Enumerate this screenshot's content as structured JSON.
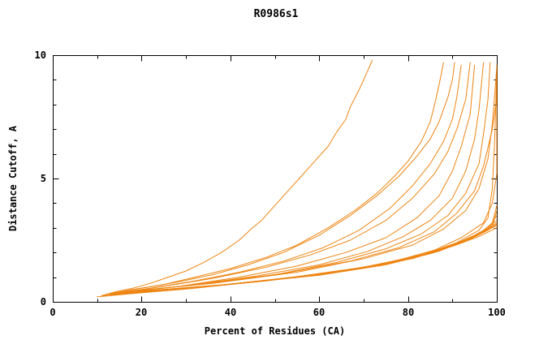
{
  "chart_data": {
    "type": "line",
    "title": "R0986s1",
    "xlabel": "Percent of Residues (CA)",
    "ylabel": "Distance Cutoff, A",
    "xlim": [
      0,
      100
    ],
    "ylim": [
      0,
      10
    ],
    "x_ticks": [
      0,
      20,
      40,
      60,
      80,
      100
    ],
    "y_ticks": [
      0,
      5,
      10
    ],
    "x_minor_ticks": [
      10,
      30,
      50,
      70,
      90
    ],
    "y_minor_ticks": [
      1,
      2,
      3,
      4,
      6,
      7,
      8,
      9
    ],
    "grid": false,
    "legend": "none",
    "line_color": "#ee8512",
    "frame_color": "#000000",
    "series": [
      [
        [
          11,
          0.25
        ],
        [
          14,
          0.4
        ],
        [
          18,
          0.55
        ],
        [
          22,
          0.75
        ],
        [
          26,
          1.0
        ],
        [
          30,
          1.25
        ],
        [
          34,
          1.6
        ],
        [
          38,
          2.0
        ],
        [
          42,
          2.5
        ],
        [
          45,
          3.0
        ],
        [
          47,
          3.3
        ],
        [
          50,
          3.9
        ],
        [
          53,
          4.5
        ],
        [
          56,
          5.1
        ],
        [
          59,
          5.7
        ],
        [
          62,
          6.3
        ],
        [
          64,
          6.9
        ],
        [
          66,
          7.4
        ],
        [
          67,
          7.9
        ],
        [
          69,
          8.6
        ],
        [
          70,
          9.0
        ],
        [
          71,
          9.4
        ],
        [
          72,
          9.8
        ]
      ],
      [
        [
          12,
          0.3
        ],
        [
          18,
          0.5
        ],
        [
          25,
          0.7
        ],
        [
          32,
          1.0
        ],
        [
          40,
          1.35
        ],
        [
          48,
          1.8
        ],
        [
          55,
          2.3
        ],
        [
          62,
          3.0
        ],
        [
          68,
          3.7
        ],
        [
          73,
          4.4
        ],
        [
          77,
          5.1
        ],
        [
          80,
          5.7
        ],
        [
          83,
          6.5
        ],
        [
          85,
          7.3
        ],
        [
          86,
          8.0
        ],
        [
          87,
          8.8
        ],
        [
          88,
          9.7
        ]
      ],
      [
        [
          12,
          0.3
        ],
        [
          20,
          0.55
        ],
        [
          28,
          0.8
        ],
        [
          36,
          1.1
        ],
        [
          44,
          1.5
        ],
        [
          52,
          2.0
        ],
        [
          60,
          2.7
        ],
        [
          67,
          3.5
        ],
        [
          73,
          4.3
        ],
        [
          78,
          5.1
        ],
        [
          82,
          5.9
        ],
        [
          85,
          6.6
        ],
        [
          87,
          7.3
        ],
        [
          89,
          8.3
        ],
        [
          90,
          9.0
        ],
        [
          90.5,
          9.7
        ]
      ],
      [
        [
          13,
          0.3
        ],
        [
          22,
          0.55
        ],
        [
          32,
          0.85
        ],
        [
          42,
          1.2
        ],
        [
          52,
          1.65
        ],
        [
          61,
          2.2
        ],
        [
          69,
          2.9
        ],
        [
          76,
          3.8
        ],
        [
          81,
          4.7
        ],
        [
          85,
          5.6
        ],
        [
          88,
          6.5
        ],
        [
          90,
          7.4
        ],
        [
          91,
          8.3
        ],
        [
          92,
          9.6
        ]
      ],
      [
        [
          13,
          0.32
        ],
        [
          24,
          0.6
        ],
        [
          36,
          0.95
        ],
        [
          48,
          1.4
        ],
        [
          58,
          1.9
        ],
        [
          67,
          2.5
        ],
        [
          75,
          3.3
        ],
        [
          81,
          4.2
        ],
        [
          86,
          5.2
        ],
        [
          89,
          6.1
        ],
        [
          91,
          7.0
        ],
        [
          93,
          8.2
        ],
        [
          94,
          9.7
        ]
      ],
      [
        [
          14,
          0.33
        ],
        [
          28,
          0.62
        ],
        [
          42,
          1.0
        ],
        [
          55,
          1.45
        ],
        [
          66,
          2.0
        ],
        [
          75,
          2.6
        ],
        [
          82,
          3.4
        ],
        [
          87,
          4.3
        ],
        [
          90,
          5.3
        ],
        [
          92,
          6.3
        ],
        [
          94,
          7.6
        ],
        [
          95,
          9.6
        ]
      ],
      [
        [
          14,
          0.35
        ],
        [
          30,
          0.65
        ],
        [
          46,
          1.05
        ],
        [
          60,
          1.5
        ],
        [
          71,
          2.05
        ],
        [
          79,
          2.65
        ],
        [
          85,
          3.3
        ],
        [
          90,
          4.2
        ],
        [
          93,
          5.3
        ],
        [
          95,
          6.6
        ],
        [
          96,
          7.8
        ],
        [
          97,
          9.7
        ]
      ],
      [
        [
          15,
          0.35
        ],
        [
          32,
          0.7
        ],
        [
          50,
          1.1
        ],
        [
          64,
          1.6
        ],
        [
          75,
          2.15
        ],
        [
          83,
          2.75
        ],
        [
          89,
          3.5
        ],
        [
          93,
          4.4
        ],
        [
          96,
          5.6
        ],
        [
          97,
          6.8
        ],
        [
          98,
          8.2
        ],
        [
          98.5,
          9.7
        ]
      ],
      [
        [
          15,
          0.38
        ],
        [
          34,
          0.72
        ],
        [
          52,
          1.15
        ],
        [
          67,
          1.65
        ],
        [
          78,
          2.2
        ],
        [
          86,
          2.85
        ],
        [
          91,
          3.6
        ],
        [
          95,
          4.5
        ],
        [
          97,
          5.5
        ],
        [
          99,
          7.0
        ],
        [
          100,
          8.3
        ],
        [
          100,
          9.6
        ]
      ],
      [
        [
          16,
          0.4
        ],
        [
          36,
          0.75
        ],
        [
          55,
          1.2
        ],
        [
          70,
          1.75
        ],
        [
          81,
          2.3
        ],
        [
          88,
          2.95
        ],
        [
          93,
          3.7
        ],
        [
          96,
          4.6
        ],
        [
          98,
          5.8
        ],
        [
          99,
          7.2
        ],
        [
          100,
          9.5
        ]
      ],
      [
        [
          11,
          0.22
        ],
        [
          25,
          0.45
        ],
        [
          40,
          0.72
        ],
        [
          55,
          1.0
        ],
        [
          70,
          1.4
        ],
        [
          82,
          1.85
        ],
        [
          90,
          2.3
        ],
        [
          95,
          2.7
        ],
        [
          98,
          3.0
        ],
        [
          100,
          3.3
        ]
      ],
      [
        [
          11,
          0.24
        ],
        [
          28,
          0.5
        ],
        [
          45,
          0.8
        ],
        [
          60,
          1.1
        ],
        [
          74,
          1.5
        ],
        [
          85,
          1.95
        ],
        [
          92,
          2.4
        ],
        [
          97,
          2.85
        ],
        [
          100,
          3.2
        ]
      ],
      [
        [
          12,
          0.25
        ],
        [
          30,
          0.52
        ],
        [
          48,
          0.85
        ],
        [
          63,
          1.18
        ],
        [
          77,
          1.6
        ],
        [
          87,
          2.05
        ],
        [
          93,
          2.5
        ],
        [
          98,
          2.95
        ],
        [
          100,
          3.5
        ]
      ],
      [
        [
          12,
          0.26
        ],
        [
          32,
          0.56
        ],
        [
          50,
          0.9
        ],
        [
          66,
          1.25
        ],
        [
          79,
          1.68
        ],
        [
          88,
          2.15
        ],
        [
          94,
          2.6
        ],
        [
          99,
          3.05
        ],
        [
          100,
          3.7
        ]
      ],
      [
        [
          13,
          0.28
        ],
        [
          34,
          0.6
        ],
        [
          52,
          0.95
        ],
        [
          68,
          1.32
        ],
        [
          81,
          1.75
        ],
        [
          89,
          2.2
        ],
        [
          95,
          2.65
        ],
        [
          100,
          3.1
        ]
      ],
      [
        [
          10,
          0.2
        ],
        [
          22,
          0.42
        ],
        [
          38,
          0.68
        ],
        [
          54,
          0.98
        ],
        [
          69,
          1.35
        ],
        [
          81,
          1.8
        ],
        [
          90,
          2.25
        ],
        [
          96,
          2.65
        ],
        [
          100,
          3.0
        ]
      ],
      [
        [
          13,
          0.3
        ],
        [
          36,
          0.64
        ],
        [
          54,
          1.0
        ],
        [
          70,
          1.4
        ],
        [
          82,
          1.85
        ],
        [
          90,
          2.3
        ],
        [
          96,
          2.75
        ],
        [
          99,
          3.2
        ],
        [
          100,
          3.9
        ]
      ],
      [
        [
          14,
          0.32
        ],
        [
          38,
          0.68
        ],
        [
          58,
          1.05
        ],
        [
          73,
          1.5
        ],
        [
          84,
          1.95
        ],
        [
          91,
          2.4
        ],
        [
          96,
          2.9
        ],
        [
          98,
          3.4
        ],
        [
          99,
          4.6
        ],
        [
          99.5,
          6.5
        ],
        [
          100,
          9.4
        ]
      ],
      [
        [
          15,
          0.36
        ],
        [
          40,
          0.72
        ],
        [
          62,
          1.15
        ],
        [
          76,
          1.6
        ],
        [
          86,
          2.1
        ],
        [
          92,
          2.6
        ],
        [
          97,
          3.2
        ],
        [
          99,
          4.0
        ],
        [
          100,
          5.2
        ],
        [
          100,
          9.3
        ]
      ],
      [
        [
          11,
          0.23
        ],
        [
          26,
          0.48
        ],
        [
          44,
          0.78
        ],
        [
          60,
          1.08
        ],
        [
          75,
          1.5
        ],
        [
          86,
          2.0
        ],
        [
          93,
          2.45
        ],
        [
          98,
          2.9
        ],
        [
          100,
          3.15
        ]
      ]
    ]
  }
}
